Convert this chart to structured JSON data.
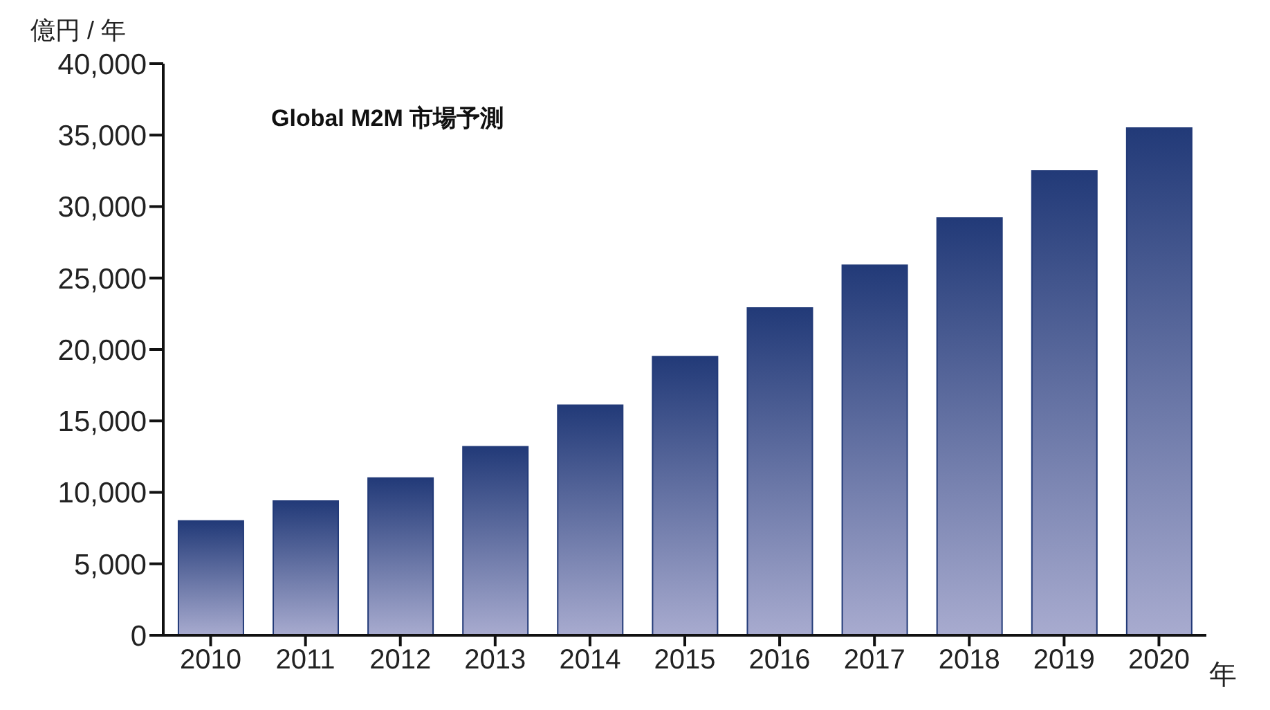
{
  "chart_data": {
    "type": "bar",
    "title": "Global M2M 市場予測",
    "ylabel": "億円 / 年",
    "xlabel": "年",
    "categories": [
      "2010",
      "2011",
      "2012",
      "2013",
      "2014",
      "2015",
      "2016",
      "2017",
      "2018",
      "2019",
      "2020"
    ],
    "values": [
      8000,
      9400,
      11000,
      13200,
      16100,
      19500,
      22900,
      25900,
      29200,
      32500,
      35500
    ],
    "color": "#223a78",
    "ylim": [
      0,
      40000
    ],
    "yticks": [
      {
        "value": 0,
        "label": "0"
      },
      {
        "value": 5000,
        "label": "5,000"
      },
      {
        "value": 10000,
        "label": "10,000"
      },
      {
        "value": 15000,
        "label": "15,000"
      },
      {
        "value": 20000,
        "label": "20,000"
      },
      {
        "value": 25000,
        "label": "25,000"
      },
      {
        "value": 30000,
        "label": "30,000"
      },
      {
        "value": 35000,
        "label": "35,000"
      },
      {
        "value": 40000,
        "label": "40,000"
      }
    ],
    "grid": false
  }
}
